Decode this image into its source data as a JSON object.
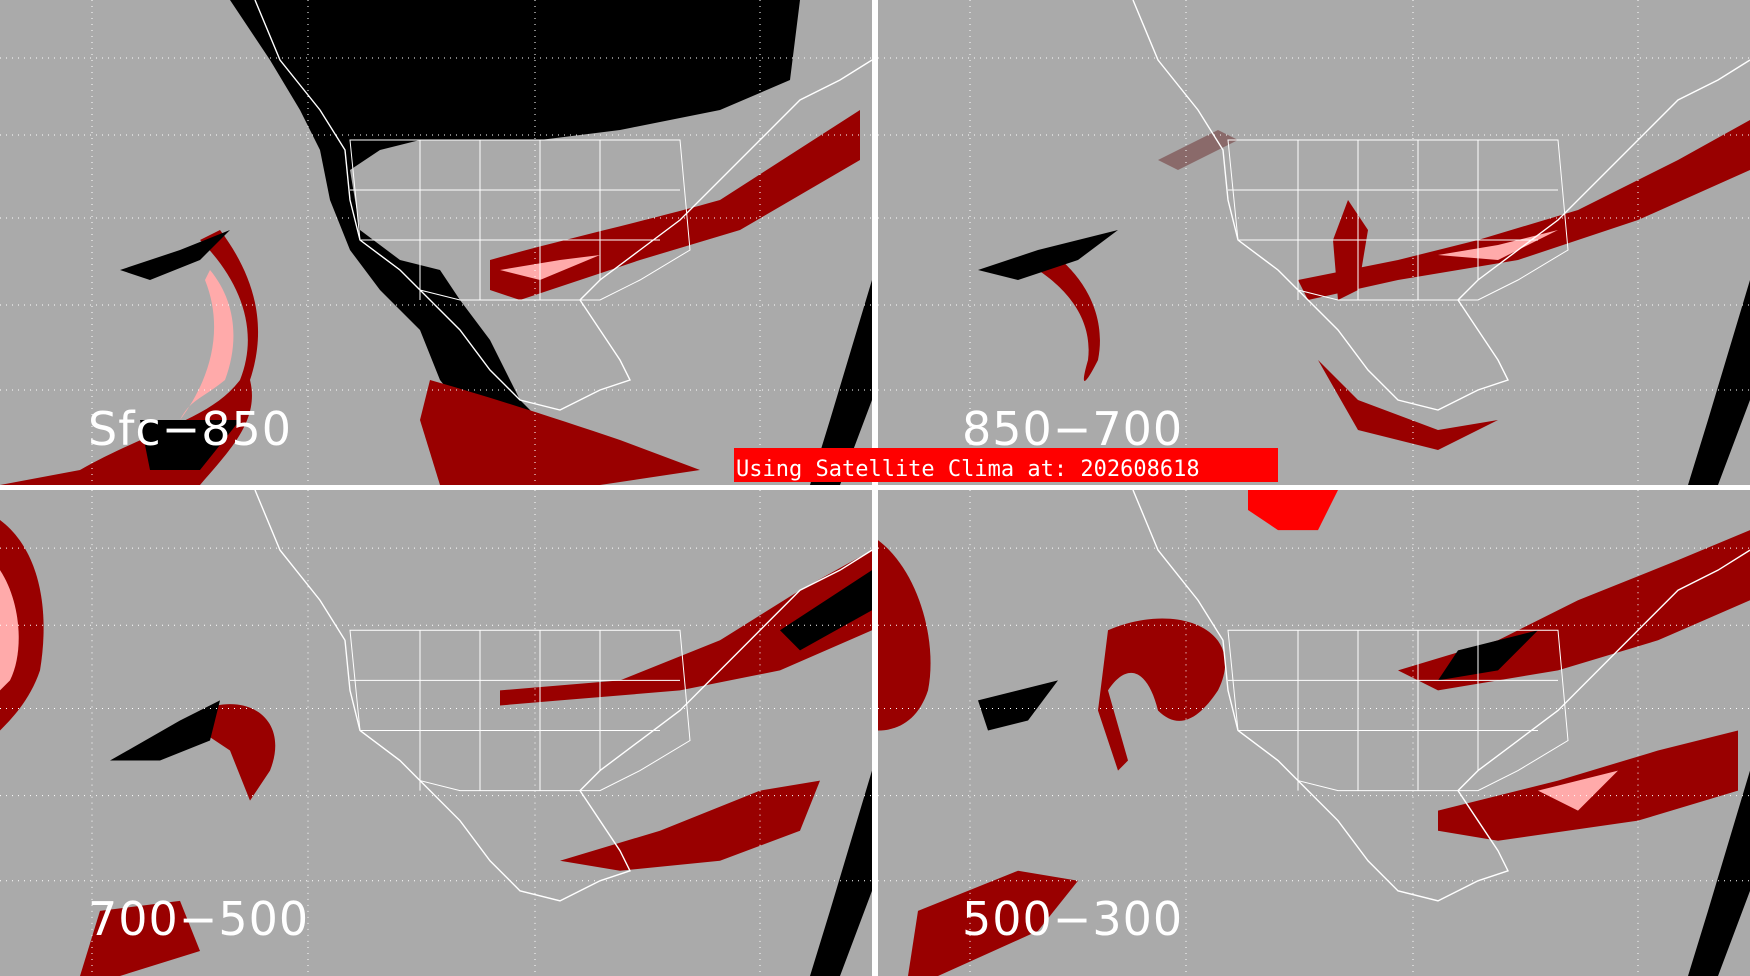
{
  "banner": {
    "text": "Using Satellite Clima at: 202608618",
    "color": "#ff0000"
  },
  "panels": [
    {
      "label": "Sfc−850"
    },
    {
      "label": "850−700"
    },
    {
      "label": "700−500"
    },
    {
      "label": "500−300"
    }
  ],
  "colors": {
    "background": "#aaaaaa",
    "dark_red": "#990000",
    "muted_red": "#8a6a6a",
    "pink": "#ffaaaa",
    "black": "#000000",
    "bright_red": "#ff0000",
    "boundaries": "#ffffff"
  }
}
